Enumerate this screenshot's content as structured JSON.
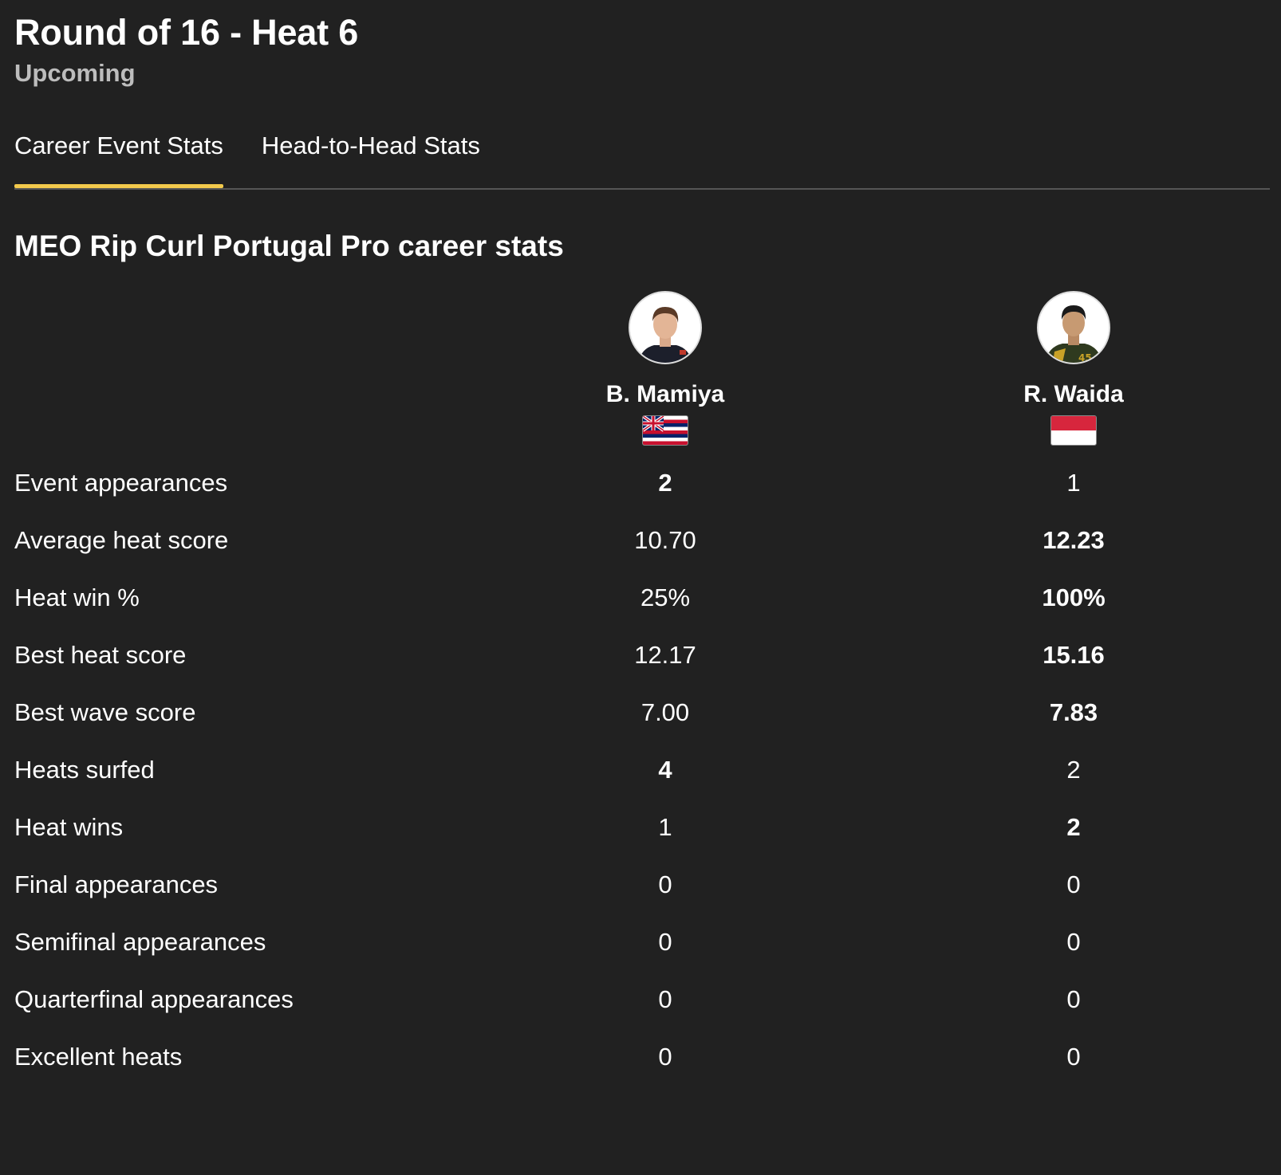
{
  "heat": {
    "title": "Round of 16 - Heat 6",
    "status": "Upcoming"
  },
  "tabs": [
    {
      "label": "Career Event Stats",
      "active": true
    },
    {
      "label": "Head-to-Head Stats",
      "active": false
    }
  ],
  "section": {
    "title": "MEO Rip Curl Portugal Pro career stats"
  },
  "surfers": [
    {
      "name": "B. Mamiya",
      "flag": "hawaii-flag-icon"
    },
    {
      "name": "R. Waida",
      "flag": "indonesia-flag-icon"
    }
  ],
  "stats": [
    {
      "label": "Event appearances",
      "v1": "2",
      "v2": "1",
      "best": 1
    },
    {
      "label": "Average heat score",
      "v1": "10.70",
      "v2": "12.23",
      "best": 2
    },
    {
      "label": "Heat win %",
      "v1": "25%",
      "v2": "100%",
      "best": 2
    },
    {
      "label": "Best heat score",
      "v1": "12.17",
      "v2": "15.16",
      "best": 2
    },
    {
      "label": "Best wave score",
      "v1": "7.00",
      "v2": "7.83",
      "best": 2
    },
    {
      "label": "Heats surfed",
      "v1": "4",
      "v2": "2",
      "best": 1
    },
    {
      "label": "Heat wins",
      "v1": "1",
      "v2": "2",
      "best": 2
    },
    {
      "label": "Final appearances",
      "v1": "0",
      "v2": "0",
      "best": 0
    },
    {
      "label": "Semifinal appearances",
      "v1": "0",
      "v2": "0",
      "best": 0
    },
    {
      "label": "Quarterfinal appearances",
      "v1": "0",
      "v2": "0",
      "best": 0
    },
    {
      "label": "Excellent heats",
      "v1": "0",
      "v2": "0",
      "best": 0
    }
  ],
  "colors": {
    "background": "#212121",
    "accent": "#f2c94c",
    "muted_text": "#bdbdbd",
    "divider": "#555555"
  }
}
